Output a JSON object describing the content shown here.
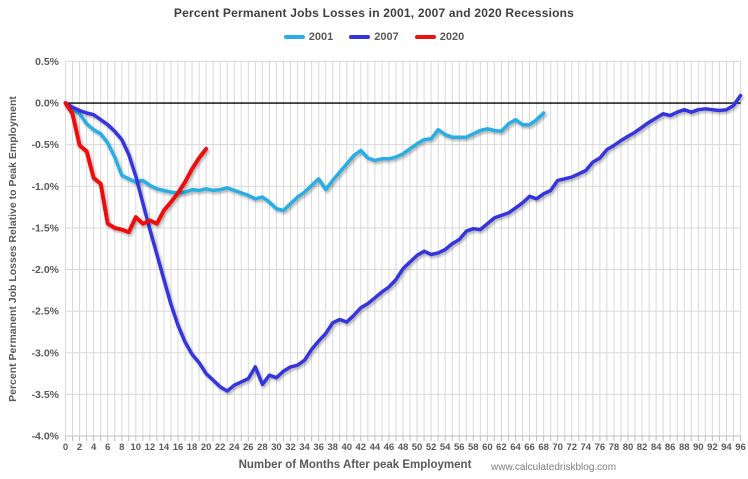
{
  "chart_data": {
    "type": "line",
    "title": "Percent Permanent Jobs Losses in 2001, 2007 and 2020 Recessions",
    "xlabel": "Number of Months After peak Employment",
    "ylabel": "Percent Permanent Job Losses Relative to Peak Employment",
    "watermark": "www.calculatedriskblog.com",
    "x_range": [
      0,
      96
    ],
    "y_range": [
      -4.0,
      0.5
    ],
    "x_tick_step": 2,
    "y_tick_step": 0.5,
    "grid": true,
    "legend_position": "top-center",
    "x_tick_labels": [
      "0",
      "2",
      "4",
      "6",
      "8",
      "10",
      "12",
      "14",
      "16",
      "18",
      "20",
      "22",
      "24",
      "26",
      "28",
      "30",
      "32",
      "34",
      "36",
      "38",
      "40",
      "42",
      "44",
      "46",
      "48",
      "50",
      "52",
      "54",
      "56",
      "58",
      "60",
      "62",
      "64",
      "66",
      "68",
      "70",
      "72",
      "74",
      "76",
      "78",
      "80",
      "82",
      "84",
      "86",
      "88",
      "90",
      "92",
      "94",
      "96"
    ],
    "y_tick_labels": [
      "0.5%",
      "0.0%",
      "-0.5%",
      "-1.0%",
      "-1.5%",
      "-2.0%",
      "-2.5%",
      "-3.0%",
      "-3.5%",
      "-4.0%"
    ],
    "styling": {
      "grid_color": "#d9d9d9",
      "axis_color": "#bfbfbf",
      "zero_line_color": "#000000",
      "tick_text_color": "#595959",
      "title_color": "#3f3f3f",
      "watermark_color": "#7f7f7f"
    },
    "series": [
      {
        "name": "2001",
        "color": "#2bade3",
        "x_start": 0,
        "x_step": 1,
        "values": [
          0.0,
          -0.07,
          -0.13,
          -0.25,
          -0.32,
          -0.37,
          -0.48,
          -0.65,
          -0.87,
          -0.91,
          -0.95,
          -0.93,
          -0.99,
          -1.03,
          -1.05,
          -1.07,
          -1.08,
          -1.07,
          -1.04,
          -1.05,
          -1.03,
          -1.05,
          -1.04,
          -1.02,
          -1.05,
          -1.08,
          -1.11,
          -1.15,
          -1.13,
          -1.19,
          -1.27,
          -1.29,
          -1.21,
          -1.13,
          -1.07,
          -0.99,
          -0.91,
          -1.04,
          -0.93,
          -0.83,
          -0.73,
          -0.63,
          -0.57,
          -0.66,
          -0.69,
          -0.67,
          -0.67,
          -0.65,
          -0.61,
          -0.55,
          -0.49,
          -0.44,
          -0.43,
          -0.32,
          -0.38,
          -0.41,
          -0.41,
          -0.41,
          -0.37,
          -0.33,
          -0.31,
          -0.33,
          -0.34,
          -0.25,
          -0.2,
          -0.26,
          -0.26,
          -0.2,
          -0.12
        ]
      },
      {
        "name": "2007",
        "color": "#3434dd",
        "x_start": 0,
        "x_step": 1,
        "values": [
          0.0,
          -0.05,
          -0.09,
          -0.12,
          -0.14,
          -0.2,
          -0.26,
          -0.34,
          -0.44,
          -0.62,
          -0.88,
          -1.2,
          -1.52,
          -1.82,
          -2.12,
          -2.42,
          -2.67,
          -2.87,
          -3.02,
          -3.12,
          -3.25,
          -3.33,
          -3.41,
          -3.46,
          -3.39,
          -3.35,
          -3.31,
          -3.17,
          -3.38,
          -3.27,
          -3.3,
          -3.22,
          -3.17,
          -3.15,
          -3.09,
          -2.96,
          -2.86,
          -2.77,
          -2.64,
          -2.6,
          -2.63,
          -2.55,
          -2.46,
          -2.41,
          -2.34,
          -2.27,
          -2.21,
          -2.12,
          -1.99,
          -1.91,
          -1.83,
          -1.78,
          -1.82,
          -1.8,
          -1.76,
          -1.69,
          -1.64,
          -1.54,
          -1.51,
          -1.52,
          -1.45,
          -1.38,
          -1.35,
          -1.32,
          -1.26,
          -1.2,
          -1.12,
          -1.15,
          -1.09,
          -1.05,
          -0.93,
          -0.91,
          -0.89,
          -0.85,
          -0.81,
          -0.71,
          -0.66,
          -0.56,
          -0.51,
          -0.45,
          -0.4,
          -0.35,
          -0.29,
          -0.23,
          -0.18,
          -0.13,
          -0.15,
          -0.11,
          -0.08,
          -0.11,
          -0.08,
          -0.07,
          -0.08,
          -0.09,
          -0.08,
          -0.03,
          0.09
        ]
      },
      {
        "name": "2020",
        "color": "#ee1111",
        "x_start": 0,
        "x_step": 1,
        "values": [
          0.0,
          -0.13,
          -0.51,
          -0.58,
          -0.9,
          -0.97,
          -1.45,
          -1.5,
          -1.52,
          -1.55,
          -1.37,
          -1.45,
          -1.41,
          -1.45,
          -1.29,
          -1.19,
          -1.08,
          -0.95,
          -0.79,
          -0.66,
          -0.55
        ]
      }
    ]
  }
}
